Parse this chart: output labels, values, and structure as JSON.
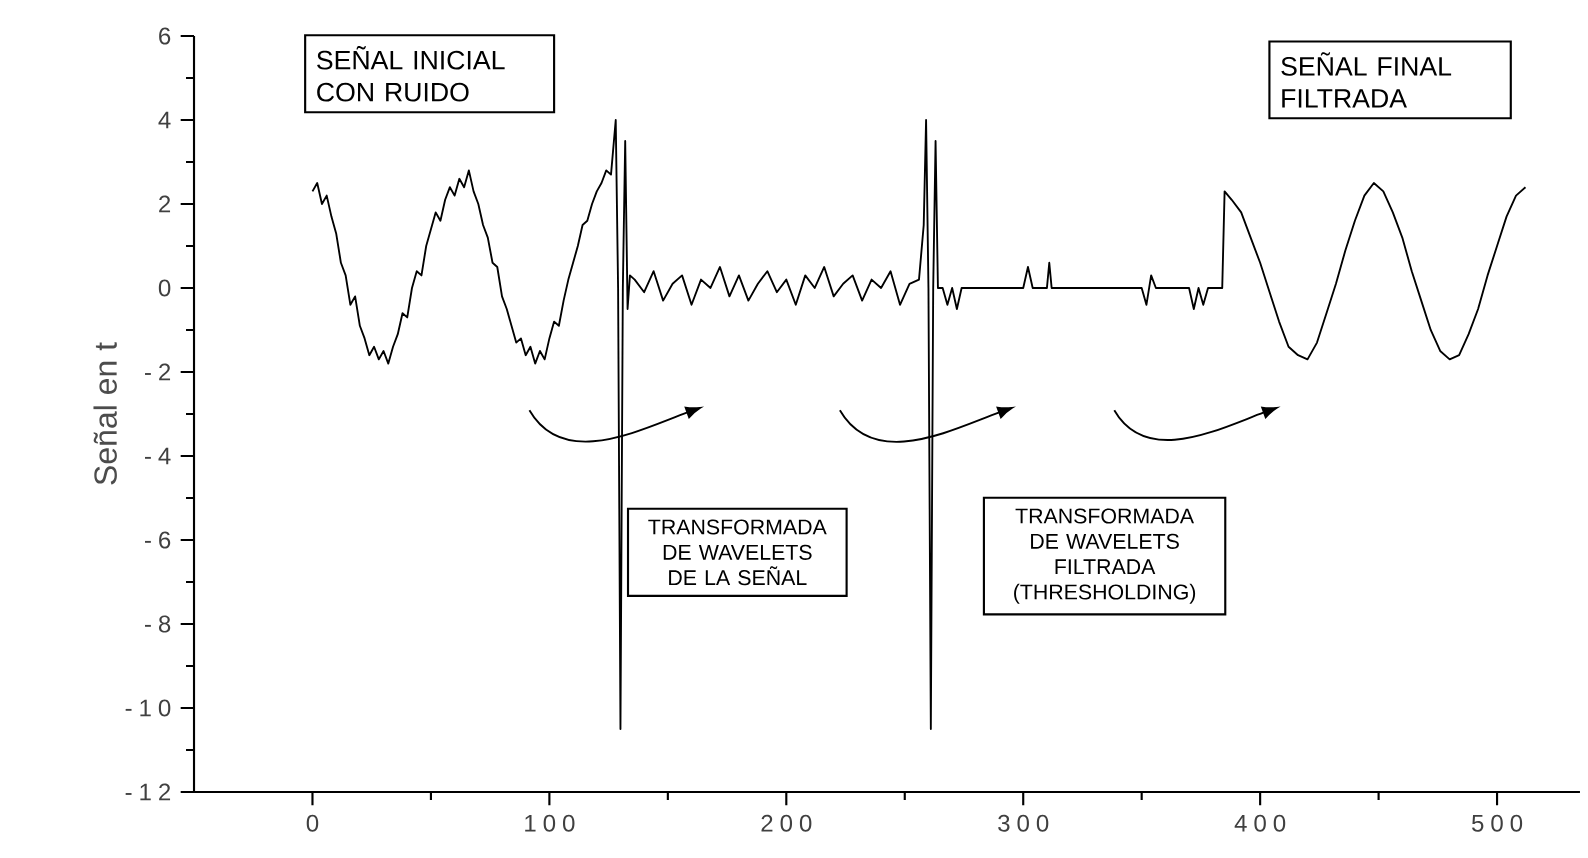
{
  "chart_data": {
    "type": "line",
    "ylabel": "Señal en t",
    "xlim": [
      -50,
      535
    ],
    "ylim": [
      -12,
      6
    ],
    "xticks": [
      0,
      100,
      200,
      300,
      400,
      500
    ],
    "yticks": [
      -12,
      -10,
      -8,
      -6,
      -4,
      -2,
      0,
      2,
      4,
      6
    ],
    "annotations": [
      "SEÑAL INICIAL CON RUIDO",
      "SEÑAL FINAL FILTRADA",
      "TRANSFORMADA DE WAVELETS DE LA SEÑAL",
      "TRANSFORMADA DE WAVELETS FILTRADA (THRESHOLDING)"
    ],
    "series": [
      {
        "color": "#000000",
        "x": [
          0,
          2,
          4,
          6,
          8,
          10,
          12,
          14,
          16,
          18,
          20,
          22,
          24,
          26,
          28,
          30,
          32,
          34,
          36,
          38,
          40,
          42,
          44,
          46,
          48,
          50,
          52,
          54,
          56,
          58,
          60,
          62,
          64,
          66,
          68,
          70,
          72,
          74,
          76,
          78,
          80,
          82,
          84,
          86,
          88,
          90,
          92,
          94,
          96,
          98,
          100,
          102,
          104,
          106,
          108,
          110,
          112,
          114,
          116,
          118,
          120,
          122,
          124,
          126,
          128,
          129,
          130,
          131,
          132,
          133,
          134,
          136,
          140,
          144,
          148,
          152,
          156,
          160,
          164,
          168,
          172,
          176,
          180,
          184,
          188,
          192,
          196,
          200,
          204,
          208,
          212,
          216,
          220,
          224,
          228,
          232,
          236,
          240,
          244,
          248,
          252,
          256,
          258,
          259,
          260,
          261,
          262,
          263,
          264,
          266,
          268,
          270,
          272,
          274,
          300,
          302,
          304,
          310,
          311,
          312,
          350,
          352,
          354,
          356,
          370,
          372,
          374,
          376,
          378,
          384,
          385,
          388,
          392,
          396,
          400,
          404,
          408,
          412,
          416,
          420,
          424,
          428,
          432,
          436,
          440,
          444,
          448,
          452,
          456,
          460,
          464,
          468,
          472,
          476,
          480,
          484,
          488,
          492,
          496,
          500,
          504,
          508,
          512
        ],
        "values": [
          2.3,
          2.5,
          2.0,
          2.2,
          1.7,
          1.3,
          0.6,
          0.3,
          -0.4,
          -0.2,
          -0.9,
          -1.2,
          -1.6,
          -1.4,
          -1.7,
          -1.5,
          -1.8,
          -1.4,
          -1.1,
          -0.6,
          -0.7,
          0.0,
          0.4,
          0.3,
          1.0,
          1.4,
          1.8,
          1.6,
          2.1,
          2.4,
          2.2,
          2.6,
          2.4,
          2.8,
          2.3,
          2.0,
          1.5,
          1.2,
          0.6,
          0.5,
          -0.2,
          -0.5,
          -0.9,
          -1.3,
          -1.2,
          -1.6,
          -1.4,
          -1.8,
          -1.5,
          -1.7,
          -1.2,
          -0.8,
          -0.9,
          -0.3,
          0.2,
          0.6,
          1.0,
          1.5,
          1.6,
          2.0,
          2.3,
          2.5,
          2.8,
          2.7,
          4.0,
          0.0,
          -10.5,
          0.0,
          3.5,
          -0.5,
          0.3,
          0.2,
          -0.1,
          0.4,
          -0.3,
          0.1,
          0.3,
          -0.4,
          0.2,
          0.0,
          0.5,
          -0.2,
          0.3,
          -0.3,
          0.1,
          0.4,
          -0.1,
          0.2,
          -0.4,
          0.3,
          0.0,
          0.5,
          -0.2,
          0.1,
          0.3,
          -0.3,
          0.2,
          0.0,
          0.4,
          -0.4,
          0.1,
          0.2,
          1.5,
          4.0,
          0.0,
          -10.5,
          0.0,
          3.5,
          0.0,
          0.0,
          -0.4,
          0.0,
          -0.5,
          0.0,
          0.0,
          0.5,
          0.0,
          0.0,
          0.6,
          0.0,
          0.0,
          -0.4,
          0.3,
          0.0,
          0.0,
          -0.5,
          0.0,
          -0.4,
          0.0,
          0.0,
          2.3,
          2.1,
          1.8,
          1.2,
          0.6,
          -0.1,
          -0.8,
          -1.4,
          -1.6,
          -1.7,
          -1.3,
          -0.6,
          0.1,
          0.9,
          1.6,
          2.2,
          2.5,
          2.3,
          1.8,
          1.2,
          0.4,
          -0.3,
          -1.0,
          -1.5,
          -1.7,
          -1.6,
          -1.1,
          -0.5,
          0.3,
          1.0,
          1.7,
          2.2,
          2.4
        ]
      }
    ]
  }
}
